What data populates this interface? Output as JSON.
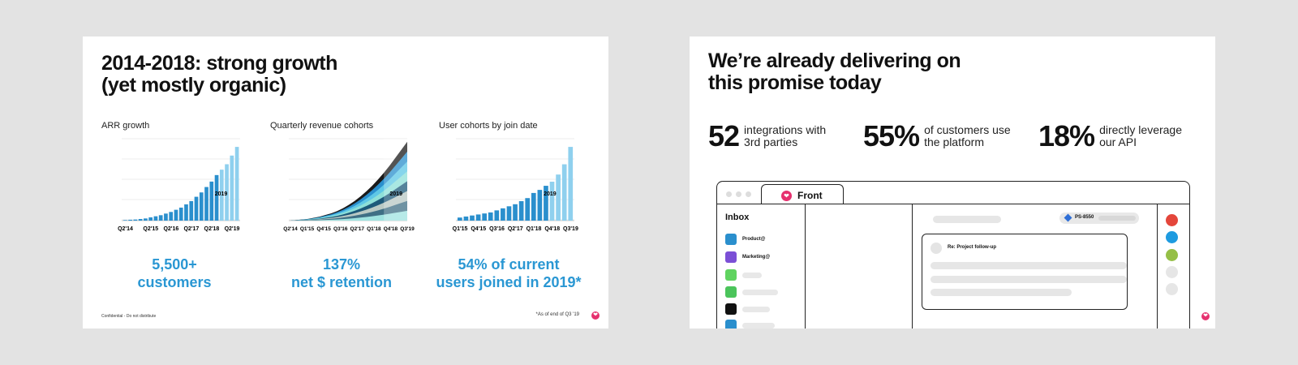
{
  "slide1": {
    "title_line1": "2014-2018: strong growth",
    "title_line2": "(yet mostly organic)",
    "charts": [
      {
        "title": "ARR growth",
        "highlight_label": "2019",
        "stat_line1": "5,500+",
        "stat_line2": "customers"
      },
      {
        "title": "Quarterly revenue cohorts",
        "highlight_label": "2019",
        "stat_line1": "137%",
        "stat_line2": "net $ retention"
      },
      {
        "title": "User cohorts by join date",
        "highlight_label": "2019",
        "stat_line1": "54% of current",
        "stat_line2": "users joined in 2019*"
      }
    ],
    "footnote_left": "Confidential - Do not distribute",
    "footnote_right": "*As of end of Q3 '19"
  },
  "slide2": {
    "title_line1": "We’re already delivering on",
    "title_line2": "this promise today",
    "metrics": [
      {
        "value": "52",
        "text": "integrations with 3rd parties"
      },
      {
        "value": "55%",
        "text": "of customers use the platform"
      },
      {
        "value": "18%",
        "text": "directly leverage our API"
      }
    ],
    "app": {
      "tab_label": "Front",
      "inbox_title": "Inbox",
      "inbox_items": [
        "Product@",
        "Marketing@"
      ],
      "ticket_id": "PS-8550",
      "message_subject": "Re: Project follow-up"
    }
  },
  "chart_data": [
    {
      "type": "bar",
      "title": "ARR growth",
      "categories": [
        "Q2'14",
        "",
        "",
        "",
        "",
        "Q2'15",
        "",
        "",
        "",
        "Q2'16",
        "",
        "",
        "",
        "Q2'17",
        "",
        "",
        "",
        "Q2'18",
        "",
        "",
        "",
        "Q2'19",
        ""
      ],
      "values": [
        0.5,
        0.8,
        1,
        1.5,
        2,
        3,
        4,
        5,
        6.5,
        8,
        10,
        12,
        15,
        18,
        22,
        26,
        31,
        36,
        42,
        47,
        52,
        60,
        68
      ],
      "tick_labels": [
        "Q2'14",
        "Q2'15",
        "Q2'16",
        "Q2'17",
        "Q2'18",
        "Q2'19"
      ],
      "highlight_from_index": 19,
      "colors": {
        "base": "#2a8fcd",
        "highlight": "#8fd0ee"
      }
    },
    {
      "type": "area",
      "title": "Quarterly revenue cohorts",
      "tick_labels": [
        "Q2'14",
        "Q1'15",
        "Q4'15",
        "Q3'16",
        "Q2'17",
        "Q1'18",
        "Q4'18",
        "Q3'19"
      ],
      "totals": [
        0,
        0.5,
        1,
        1.5,
        2.5,
        3.5,
        5,
        6.5,
        8.5,
        11,
        14,
        17.5,
        21.5,
        26,
        31,
        36.5,
        42.5,
        49,
        56,
        63,
        70
      ],
      "colors": [
        "#1a1a1a",
        "#2a8fcd",
        "#5ec7e6",
        "#8ee0d8",
        "#1d5a7a",
        "#b9c9c4",
        "#3f6f85",
        "#9fe3e0"
      ]
    },
    {
      "type": "bar",
      "title": "User cohorts by join date",
      "categories": [
        "Q1'15",
        "",
        "",
        "Q4'15",
        "",
        "",
        "Q3'16",
        "",
        "",
        "Q2'17",
        "",
        "",
        "Q1'18",
        "",
        "",
        "Q4'18",
        "",
        "",
        "Q3'19"
      ],
      "values": [
        3,
        4,
        5,
        6,
        7,
        8,
        10,
        12,
        14,
        16,
        19,
        22,
        27,
        30,
        34,
        38,
        45,
        55,
        72
      ],
      "tick_labels": [
        "Q1'15",
        "Q4'15",
        "Q3'16",
        "Q2'17",
        "Q1'18",
        "Q4'18",
        "Q3'19"
      ],
      "highlight_from_index": 15,
      "colors": {
        "base": "#2a8fcd",
        "highlight": "#8fd0ee"
      }
    }
  ]
}
